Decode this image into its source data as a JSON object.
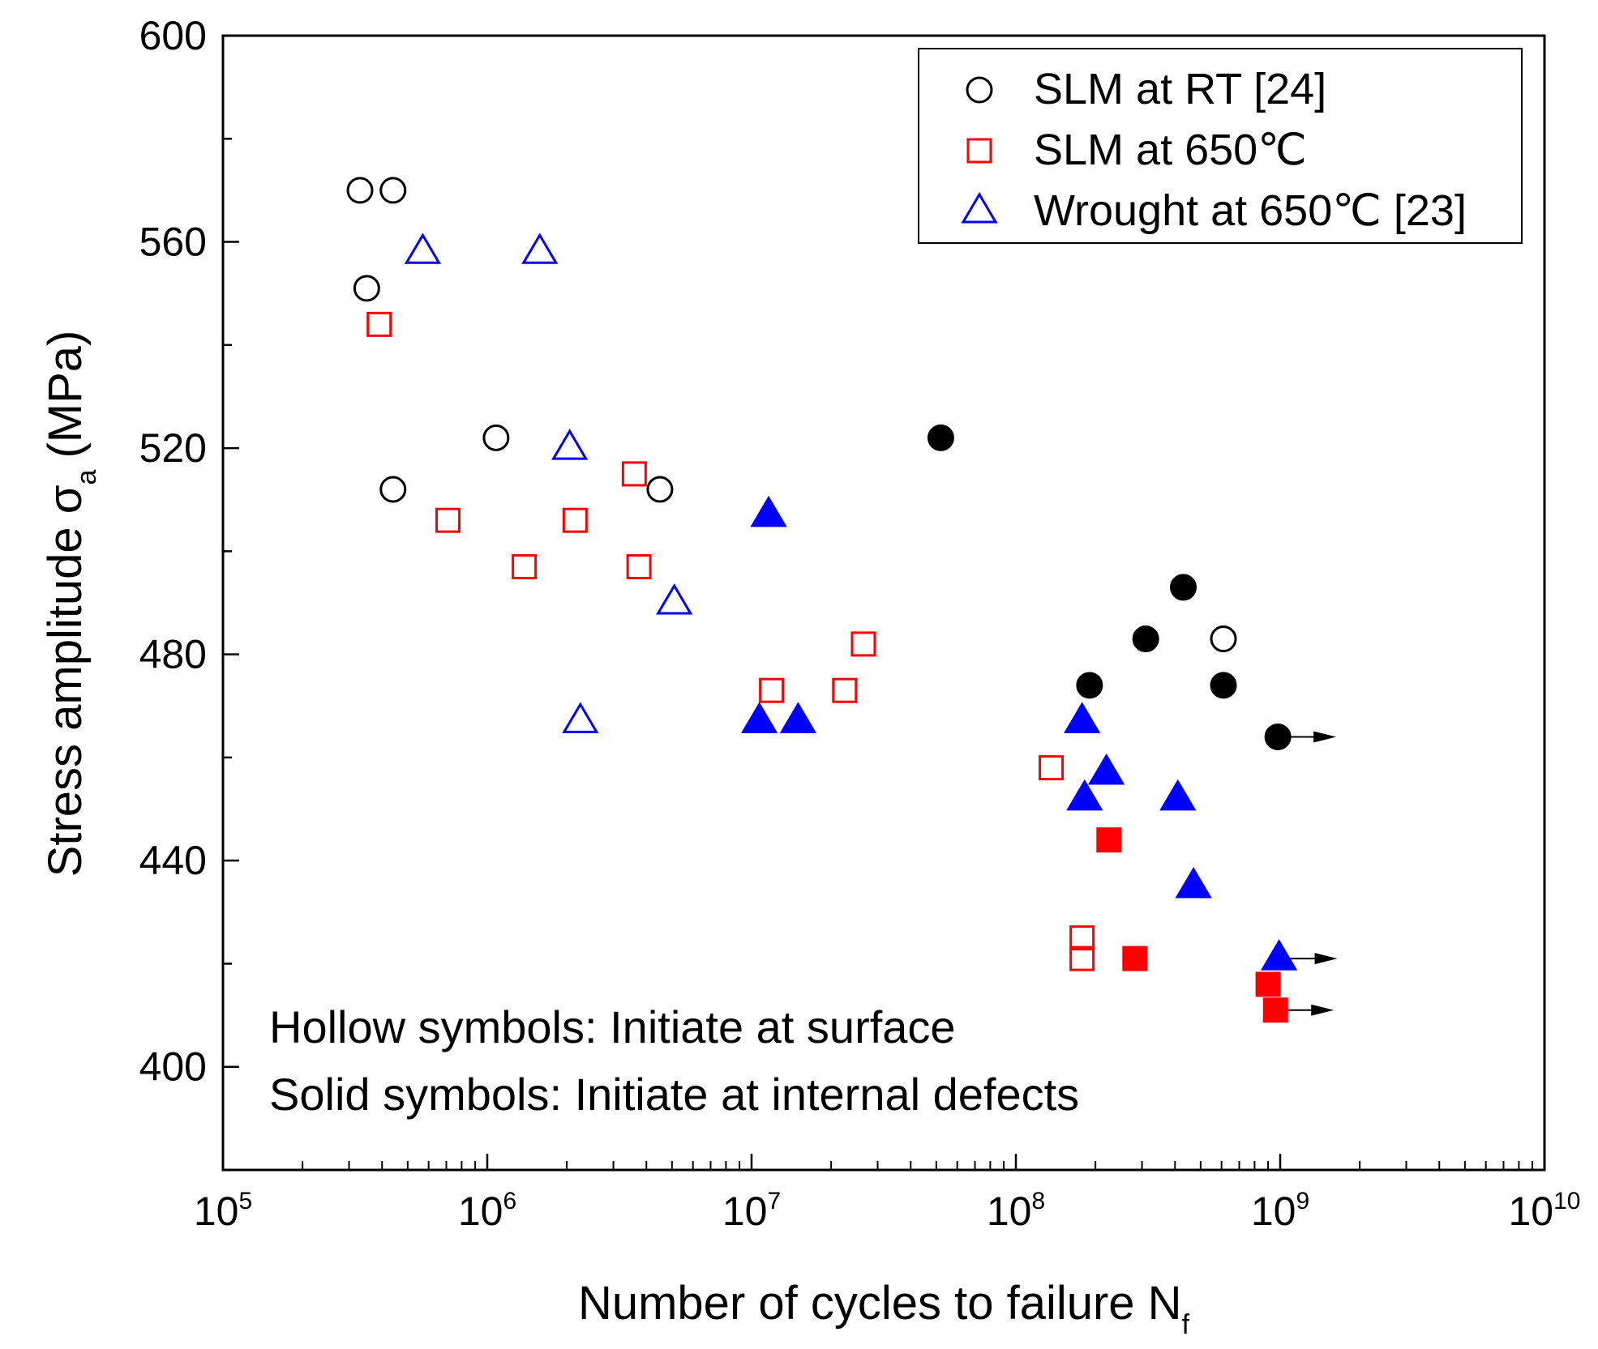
{
  "chart_data": {
    "type": "scatter",
    "xscale": "log",
    "xlim": [
      100000,
      10000000000
    ],
    "ylim": [
      380,
      600
    ],
    "grid": false,
    "xlabel": {
      "main": "Number of cycles to failure N",
      "sub": "f"
    },
    "ylabel": {
      "main": "Stress amplitude σ",
      "sub": "a",
      "unit": "(MPa)"
    },
    "xticks": [
      {
        "value": 100000,
        "base": "10",
        "exp": "5"
      },
      {
        "value": 1000000,
        "base": "10",
        "exp": "6"
      },
      {
        "value": 10000000,
        "base": "10",
        "exp": "7"
      },
      {
        "value": 100000000,
        "base": "10",
        "exp": "8"
      },
      {
        "value": 1000000000,
        "base": "10",
        "exp": "9"
      },
      {
        "value": 10000000000,
        "base": "10",
        "exp": "10"
      }
    ],
    "yticks": [
      400,
      440,
      480,
      520,
      560,
      600
    ],
    "legend": {
      "position": "top-right",
      "entries": [
        {
          "label": "SLM at RT [24]",
          "marker": "circle",
          "color": "#000000"
        },
        {
          "label": "SLM at 650℃",
          "marker": "square",
          "color": "#ff0000"
        },
        {
          "label": "Wrought at 650℃ [23]",
          "marker": "triangle",
          "color": "#0000ff"
        }
      ]
    },
    "annotations": [
      "Hollow symbols: Initiate at surface",
      "Solid symbols: Initiate at internal defects"
    ],
    "series": [
      {
        "name": "SLM at RT [24]",
        "marker": "circle",
        "color": "#000000",
        "points": [
          {
            "x": 330000,
            "y": 570,
            "filled": false
          },
          {
            "x": 440000,
            "y": 570,
            "filled": false
          },
          {
            "x": 350000,
            "y": 551,
            "filled": false
          },
          {
            "x": 440000,
            "y": 512,
            "filled": false
          },
          {
            "x": 1080000,
            "y": 522,
            "filled": false
          },
          {
            "x": 4500000,
            "y": 512,
            "filled": false
          },
          {
            "x": 52000000,
            "y": 522,
            "filled": true
          },
          {
            "x": 190000000,
            "y": 474,
            "filled": true
          },
          {
            "x": 310000000,
            "y": 483,
            "filled": true
          },
          {
            "x": 430000000,
            "y": 493,
            "filled": true
          },
          {
            "x": 610000000,
            "y": 483,
            "filled": false
          },
          {
            "x": 610000000,
            "y": 474,
            "filled": true
          },
          {
            "x": 980000000,
            "y": 464,
            "filled": true,
            "runout": true
          }
        ]
      },
      {
        "name": "SLM at 650℃",
        "marker": "square",
        "color": "#ff0000",
        "points": [
          {
            "x": 390000,
            "y": 544,
            "filled": false
          },
          {
            "x": 710000,
            "y": 506,
            "filled": false
          },
          {
            "x": 1380000,
            "y": 497,
            "filled": false
          },
          {
            "x": 2150000,
            "y": 506,
            "filled": false
          },
          {
            "x": 3600000,
            "y": 515,
            "filled": false
          },
          {
            "x": 3750000,
            "y": 497,
            "filled": false
          },
          {
            "x": 11900000,
            "y": 473,
            "filled": false
          },
          {
            "x": 22500000,
            "y": 473,
            "filled": false
          },
          {
            "x": 26500000,
            "y": 482,
            "filled": false
          },
          {
            "x": 136000000,
            "y": 458,
            "filled": false
          },
          {
            "x": 178000000,
            "y": 425,
            "filled": false
          },
          {
            "x": 178000000,
            "y": 421,
            "filled": false
          },
          {
            "x": 225000000,
            "y": 444,
            "filled": true
          },
          {
            "x": 282000000,
            "y": 421,
            "filled": true
          },
          {
            "x": 900000000,
            "y": 416,
            "filled": true
          },
          {
            "x": 960000000,
            "y": 411,
            "filled": true,
            "runout": true
          }
        ]
      },
      {
        "name": "Wrought at 650℃ [23]",
        "marker": "triangle",
        "color": "#0000ff",
        "points": [
          {
            "x": 570000,
            "y": 558,
            "filled": false
          },
          {
            "x": 1580000,
            "y": 558,
            "filled": false
          },
          {
            "x": 2050000,
            "y": 520,
            "filled": false
          },
          {
            "x": 5100000,
            "y": 490,
            "filled": false
          },
          {
            "x": 2250000,
            "y": 467,
            "filled": false
          },
          {
            "x": 11600000,
            "y": 507,
            "filled": true
          },
          {
            "x": 10700000,
            "y": 467,
            "filled": true
          },
          {
            "x": 15000000,
            "y": 467,
            "filled": true
          },
          {
            "x": 178000000,
            "y": 467,
            "filled": true
          },
          {
            "x": 220000000,
            "y": 457,
            "filled": true
          },
          {
            "x": 182000000,
            "y": 452,
            "filled": true
          },
          {
            "x": 410000000,
            "y": 452,
            "filled": true
          },
          {
            "x": 470000000,
            "y": 435,
            "filled": true
          },
          {
            "x": 990000000,
            "y": 421,
            "filled": true,
            "runout": true
          }
        ]
      }
    ]
  }
}
